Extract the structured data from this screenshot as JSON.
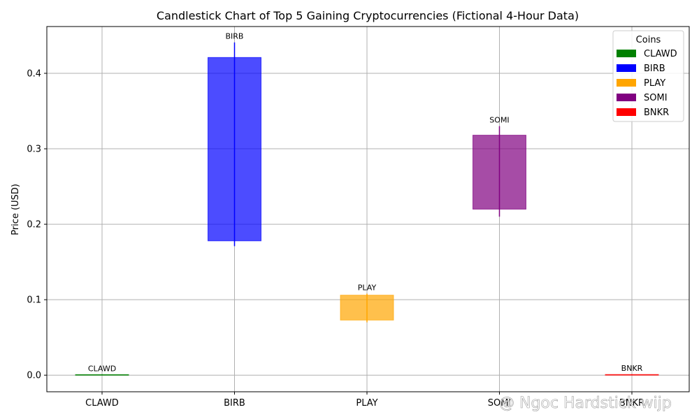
{
  "chart_data": {
    "type": "candlestick",
    "title": "Candlestick Chart of Top 5 Gaining Cryptocurrencies (Fictional 4-Hour Data)",
    "xlabel": "",
    "ylabel": "Price (USD)",
    "ylim": [
      -0.022,
      0.462
    ],
    "yticks": [
      0.0,
      0.1,
      0.2,
      0.3,
      0.4
    ],
    "ytick_labels": [
      "0.0",
      "0.1",
      "0.2",
      "0.3",
      "0.4"
    ],
    "grid": true,
    "categories": [
      "CLAWD",
      "BIRB",
      "PLAY",
      "SOMI",
      "BNKR"
    ],
    "series": [
      {
        "name": "CLAWD",
        "color": "#008000",
        "open": 0.0002,
        "close": 0.0008,
        "low": 0.0001,
        "high": 0.0009
      },
      {
        "name": "BIRB",
        "color": "#0000ff",
        "open": 0.178,
        "close": 0.421,
        "low": 0.171,
        "high": 0.441
      },
      {
        "name": "PLAY",
        "color": "#ffa500",
        "open": 0.073,
        "close": 0.106,
        "low": 0.07,
        "high": 0.108
      },
      {
        "name": "SOMI",
        "color": "#800080",
        "open": 0.22,
        "close": 0.318,
        "low": 0.21,
        "high": 0.33
      },
      {
        "name": "BNKR",
        "color": "#ff0000",
        "open": 0.0003,
        "close": 0.0009,
        "low": 0.0001,
        "high": 0.001
      }
    ],
    "legend": {
      "title": "Coins",
      "position": "top-right"
    }
  },
  "watermark": "@ Ngoc Hardstick wijp"
}
